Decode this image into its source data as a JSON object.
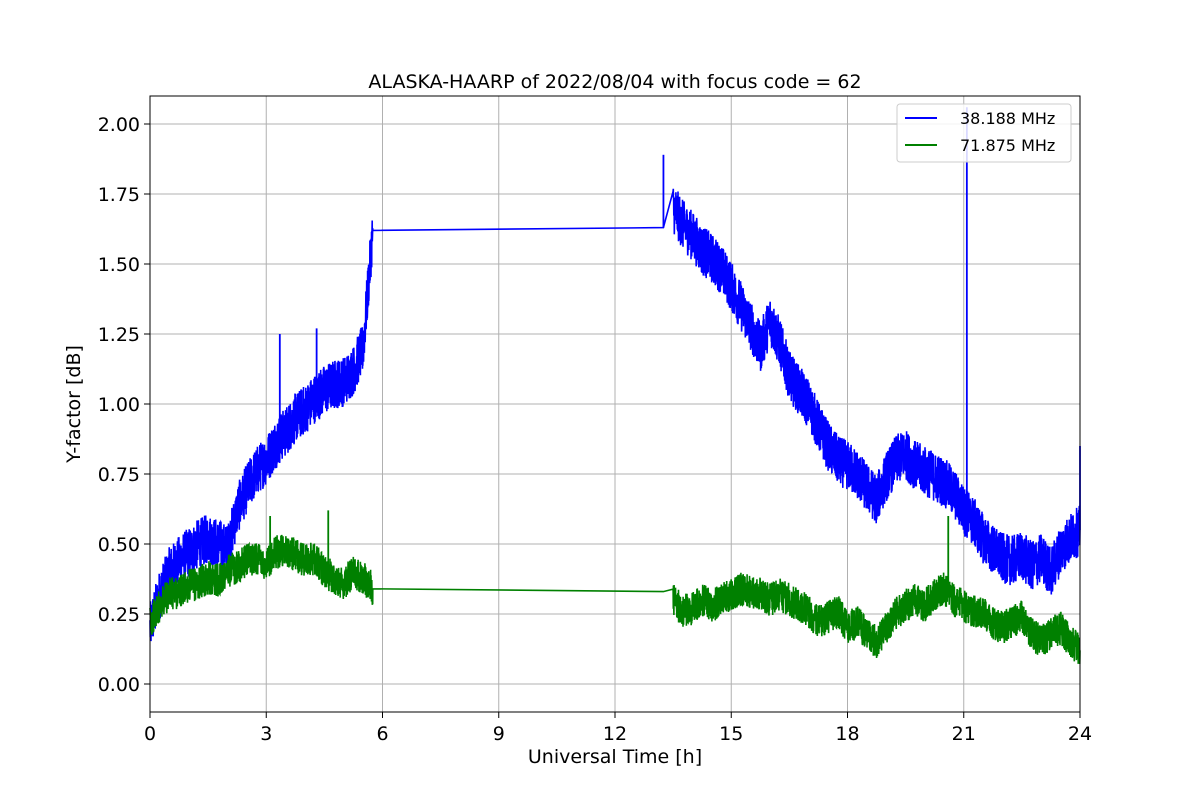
{
  "chart_data": {
    "type": "line",
    "title": "ALASKA-HAARP of 2022/08/04 with focus code = 62",
    "xlabel": "Universal Time [h]",
    "ylabel": "Y-factor [dB]",
    "xlim": [
      0,
      24
    ],
    "ylim": [
      -0.1,
      2.1
    ],
    "xticks": [
      0,
      3,
      6,
      9,
      12,
      15,
      18,
      21,
      24
    ],
    "xtick_labels": [
      "0",
      "3",
      "6",
      "9",
      "12",
      "15",
      "18",
      "21",
      "24"
    ],
    "yticks": [
      0.0,
      0.25,
      0.5,
      0.75,
      1.0,
      1.25,
      1.5,
      1.75,
      2.0
    ],
    "ytick_labels": [
      "0.00",
      "0.25",
      "0.50",
      "0.75",
      "1.00",
      "1.25",
      "1.50",
      "1.75",
      "2.00"
    ],
    "grid": true,
    "legend_position": "top-right",
    "series": [
      {
        "name": "38.188 MHz",
        "color": "#0000ff",
        "x": [
          0.0,
          0.25,
          0.5,
          0.75,
          1.0,
          1.25,
          1.5,
          1.75,
          2.0,
          2.25,
          2.5,
          2.75,
          3.0,
          3.25,
          3.5,
          3.75,
          4.0,
          4.25,
          4.5,
          4.75,
          5.0,
          5.25,
          5.5,
          5.75,
          13.25,
          13.5,
          13.75,
          14.0,
          14.25,
          14.5,
          14.75,
          15.0,
          15.25,
          15.5,
          15.75,
          16.0,
          16.25,
          16.5,
          16.75,
          17.0,
          17.25,
          17.5,
          17.75,
          18.0,
          18.25,
          18.5,
          18.75,
          19.0,
          19.25,
          19.5,
          19.75,
          20.0,
          20.25,
          20.5,
          20.75,
          21.0,
          21.25,
          21.5,
          21.75,
          22.0,
          22.25,
          22.5,
          22.75,
          23.0,
          23.25,
          23.5,
          23.75,
          24.0
        ],
        "y": [
          0.2,
          0.32,
          0.4,
          0.44,
          0.47,
          0.5,
          0.52,
          0.5,
          0.48,
          0.62,
          0.7,
          0.76,
          0.8,
          0.86,
          0.9,
          0.95,
          0.98,
          1.02,
          1.05,
          1.07,
          1.08,
          1.12,
          1.2,
          1.62,
          1.63,
          1.7,
          1.64,
          1.6,
          1.55,
          1.52,
          1.48,
          1.42,
          1.35,
          1.28,
          1.2,
          1.3,
          1.22,
          1.1,
          1.05,
          1.0,
          0.92,
          0.85,
          0.8,
          0.78,
          0.75,
          0.7,
          0.66,
          0.74,
          0.8,
          0.82,
          0.78,
          0.76,
          0.74,
          0.72,
          0.68,
          0.62,
          0.58,
          0.52,
          0.48,
          0.45,
          0.44,
          0.46,
          0.42,
          0.45,
          0.4,
          0.48,
          0.52,
          0.55
        ],
        "spikes": [
          {
            "x": 21.08,
            "y": 2.06
          },
          {
            "x": 3.35,
            "y": 1.25
          },
          {
            "x": 4.3,
            "y": 1.27
          },
          {
            "x": 13.25,
            "y": 1.89
          },
          {
            "x": 24.0,
            "y": 0.85
          }
        ]
      },
      {
        "name": "71.875 MHz",
        "color": "#008000",
        "x": [
          0.0,
          0.25,
          0.5,
          0.75,
          1.0,
          1.25,
          1.5,
          1.75,
          2.0,
          2.25,
          2.5,
          2.75,
          3.0,
          3.25,
          3.5,
          3.75,
          4.0,
          4.25,
          4.5,
          4.75,
          5.0,
          5.25,
          5.5,
          5.75,
          13.25,
          13.5,
          13.75,
          14.0,
          14.25,
          14.5,
          14.75,
          15.0,
          15.25,
          15.5,
          15.75,
          16.0,
          16.25,
          16.5,
          16.75,
          17.0,
          17.25,
          17.5,
          17.75,
          18.0,
          18.25,
          18.5,
          18.75,
          19.0,
          19.25,
          19.5,
          19.75,
          20.0,
          20.25,
          20.5,
          20.75,
          21.0,
          21.25,
          21.5,
          21.75,
          22.0,
          22.25,
          22.5,
          22.75,
          23.0,
          23.25,
          23.5,
          23.75,
          24.0
        ],
        "y": [
          0.22,
          0.28,
          0.32,
          0.33,
          0.35,
          0.36,
          0.38,
          0.37,
          0.4,
          0.42,
          0.44,
          0.45,
          0.43,
          0.47,
          0.48,
          0.46,
          0.44,
          0.45,
          0.4,
          0.38,
          0.36,
          0.4,
          0.38,
          0.34,
          0.33,
          0.3,
          0.26,
          0.27,
          0.3,
          0.28,
          0.3,
          0.32,
          0.34,
          0.33,
          0.32,
          0.3,
          0.32,
          0.3,
          0.28,
          0.26,
          0.22,
          0.24,
          0.26,
          0.2,
          0.22,
          0.18,
          0.15,
          0.2,
          0.25,
          0.28,
          0.3,
          0.28,
          0.32,
          0.34,
          0.3,
          0.28,
          0.26,
          0.25,
          0.22,
          0.2,
          0.22,
          0.24,
          0.18,
          0.15,
          0.18,
          0.2,
          0.15,
          0.12
        ],
        "spikes": [
          {
            "x": 20.6,
            "y": 0.6
          },
          {
            "x": 4.6,
            "y": 0.62
          },
          {
            "x": 3.1,
            "y": 0.6
          }
        ]
      }
    ]
  }
}
